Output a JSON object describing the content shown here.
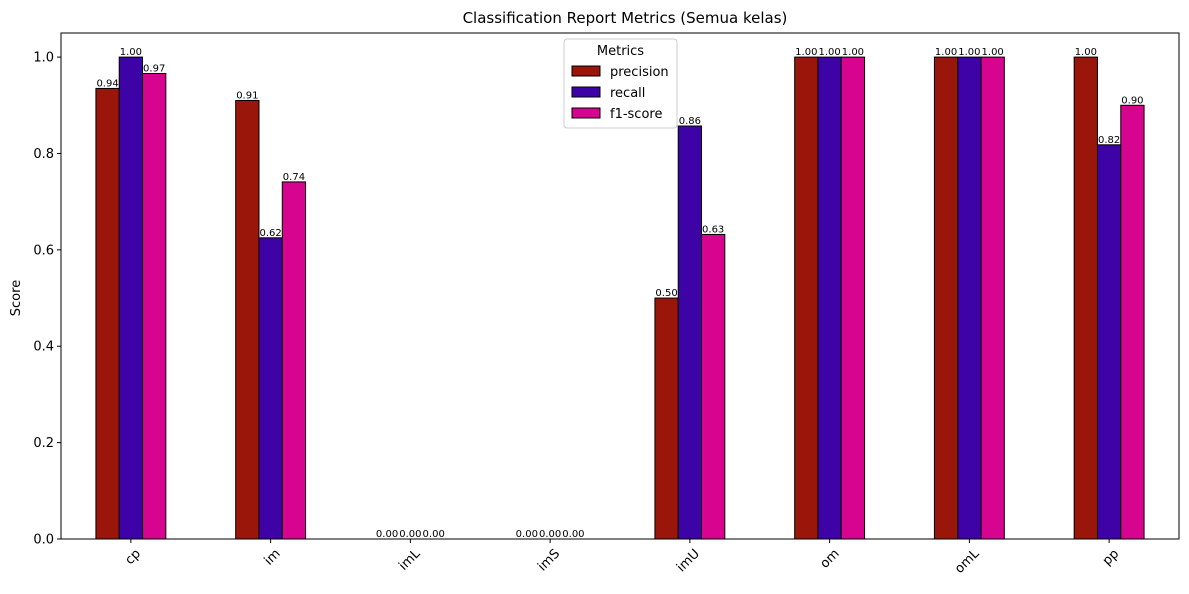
{
  "chart_data": {
    "type": "bar",
    "title": "Classification Report Metrics (Semua kelas)",
    "xlabel": "",
    "ylabel": "Score",
    "ylim": [
      0,
      1.05
    ],
    "yticks": [
      0.0,
      0.2,
      0.4,
      0.6,
      0.8,
      1.0
    ],
    "ytick_labels": [
      "0.0",
      "0.2",
      "0.4",
      "0.6",
      "0.8",
      "1.0"
    ],
    "categories": [
      "cp",
      "im",
      "imL",
      "imS",
      "imU",
      "om",
      "omL",
      "pp"
    ],
    "series": [
      {
        "name": "precision",
        "color": "#9a160a",
        "values": [
          0.935,
          0.91,
          0.0,
          0.0,
          0.5,
          1.0,
          1.0,
          1.0
        ],
        "labels": [
          "0.94",
          "0.91",
          "0.00",
          "0.00",
          "0.50",
          "1.00",
          "1.00",
          "1.00"
        ]
      },
      {
        "name": "recall",
        "color": "#3d03a7",
        "values": [
          1.0,
          0.625,
          0.0,
          0.0,
          0.857,
          1.0,
          1.0,
          0.818
        ],
        "labels": [
          "1.00",
          "0.62",
          "0.00",
          "0.00",
          "0.86",
          "1.00",
          "1.00",
          "0.82"
        ]
      },
      {
        "name": "f1-score",
        "color": "#d6048e",
        "values": [
          0.966,
          0.741,
          0.0,
          0.0,
          0.632,
          1.0,
          1.0,
          0.9
        ],
        "labels": [
          "0.97",
          "0.74",
          "0.00",
          "0.00",
          "0.63",
          "1.00",
          "1.00",
          "0.90"
        ]
      }
    ],
    "legend": {
      "title": "Metrics",
      "placement": "upper-center"
    },
    "grid": false,
    "xtick_rotation": "45 degrees"
  }
}
